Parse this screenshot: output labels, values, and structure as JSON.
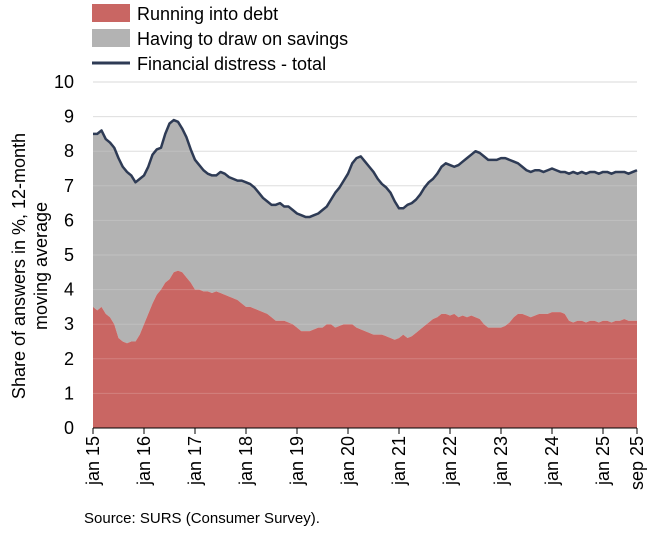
{
  "chart_data": {
    "type": "area",
    "ylabel_lines": [
      "Share of answers in %, 12-month",
      "moving average"
    ],
    "source": "Source: SURS (Consumer Survey).",
    "ylim": [
      0,
      10
    ],
    "yticks": [
      0,
      1,
      2,
      3,
      4,
      5,
      6,
      7,
      8,
      9,
      10
    ],
    "grid": "horizontal",
    "legend_position": "top",
    "colors": {
      "debt": "#c96663",
      "savings": "#b3b3b3",
      "total": "#2e3b55",
      "grid": "#d9d9d9"
    },
    "x_start": "2015-01",
    "x_end": "2025-09",
    "x_tick_labels": [
      {
        "label": "jan 15",
        "month": 0
      },
      {
        "label": "jan 16",
        "month": 12
      },
      {
        "label": "jan 17",
        "month": 24
      },
      {
        "label": "jan 18",
        "month": 36
      },
      {
        "label": "jan 19",
        "month": 48
      },
      {
        "label": "jan 20",
        "month": 60
      },
      {
        "label": "jan 21",
        "month": 72
      },
      {
        "label": "jan 22",
        "month": 84
      },
      {
        "label": "jan 23",
        "month": 96
      },
      {
        "label": "jan 24",
        "month": 108
      },
      {
        "label": "jan 25",
        "month": 120
      },
      {
        "label": "sep 25",
        "month": 128
      }
    ],
    "series": [
      {
        "key": "debt",
        "name": "Running into debt",
        "kind": "area",
        "values": [
          3.5,
          3.4,
          3.5,
          3.3,
          3.2,
          3.0,
          2.6,
          2.5,
          2.45,
          2.5,
          2.5,
          2.7,
          3.0,
          3.3,
          3.6,
          3.85,
          4.0,
          4.2,
          4.3,
          4.5,
          4.55,
          4.5,
          4.35,
          4.2,
          4.0,
          4.0,
          3.95,
          3.95,
          3.9,
          3.95,
          3.9,
          3.85,
          3.8,
          3.75,
          3.7,
          3.6,
          3.5,
          3.5,
          3.45,
          3.4,
          3.35,
          3.3,
          3.2,
          3.1,
          3.1,
          3.1,
          3.05,
          3.0,
          2.9,
          2.8,
          2.8,
          2.8,
          2.85,
          2.9,
          2.9,
          3.0,
          3.0,
          2.9,
          2.95,
          3.0,
          3.0,
          3.0,
          2.9,
          2.85,
          2.8,
          2.75,
          2.7,
          2.7,
          2.7,
          2.65,
          2.6,
          2.55,
          2.6,
          2.7,
          2.6,
          2.65,
          2.75,
          2.85,
          2.95,
          3.05,
          3.15,
          3.2,
          3.3,
          3.3,
          3.25,
          3.3,
          3.2,
          3.25,
          3.2,
          3.25,
          3.2,
          3.15,
          3.0,
          2.9,
          2.9,
          2.9,
          2.9,
          2.95,
          3.05,
          3.2,
          3.3,
          3.3,
          3.25,
          3.2,
          3.25,
          3.3,
          3.3,
          3.3,
          3.35,
          3.35,
          3.35,
          3.3,
          3.1,
          3.05,
          3.1,
          3.1,
          3.05,
          3.1,
          3.1,
          3.05,
          3.1,
          3.1,
          3.05,
          3.1,
          3.1,
          3.15,
          3.1,
          3.1,
          3.1
        ]
      },
      {
        "key": "savings",
        "name": "Having to draw on savings",
        "kind": "area"
      },
      {
        "key": "total",
        "name": "Financial distress - total",
        "kind": "line",
        "values": [
          8.5,
          8.5,
          8.6,
          8.35,
          8.25,
          8.1,
          7.8,
          7.55,
          7.4,
          7.3,
          7.1,
          7.2,
          7.3,
          7.55,
          7.9,
          8.05,
          8.1,
          8.5,
          8.8,
          8.9,
          8.85,
          8.65,
          8.4,
          8.05,
          7.75,
          7.6,
          7.45,
          7.35,
          7.3,
          7.3,
          7.4,
          7.35,
          7.25,
          7.2,
          7.15,
          7.15,
          7.1,
          7.05,
          6.95,
          6.8,
          6.65,
          6.55,
          6.45,
          6.45,
          6.5,
          6.4,
          6.4,
          6.3,
          6.2,
          6.15,
          6.1,
          6.1,
          6.15,
          6.2,
          6.3,
          6.4,
          6.6,
          6.8,
          6.95,
          7.15,
          7.35,
          7.65,
          7.8,
          7.85,
          7.7,
          7.55,
          7.4,
          7.2,
          7.05,
          6.95,
          6.8,
          6.55,
          6.35,
          6.35,
          6.45,
          6.5,
          6.6,
          6.75,
          6.95,
          7.1,
          7.2,
          7.35,
          7.55,
          7.65,
          7.6,
          7.55,
          7.6,
          7.7,
          7.8,
          7.9,
          8.0,
          7.95,
          7.85,
          7.75,
          7.75,
          7.75,
          7.8,
          7.8,
          7.75,
          7.7,
          7.65,
          7.55,
          7.45,
          7.4,
          7.45,
          7.45,
          7.4,
          7.45,
          7.5,
          7.45,
          7.4,
          7.4,
          7.35,
          7.4,
          7.35,
          7.4,
          7.35,
          7.4,
          7.4,
          7.35,
          7.4,
          7.4,
          7.35,
          7.4,
          7.4,
          7.4,
          7.35,
          7.4,
          7.45
        ]
      }
    ]
  }
}
